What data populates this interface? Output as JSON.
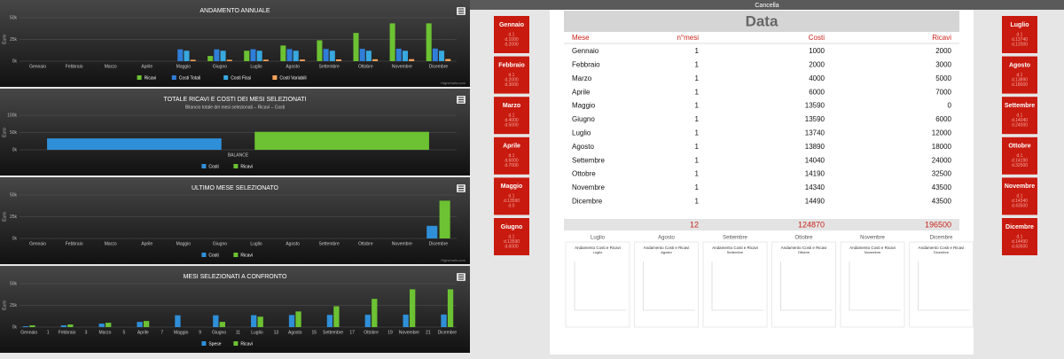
{
  "header": {
    "button": "Cancella"
  },
  "chart_data": [
    {
      "type": "bar",
      "title": "ANDAMENTO ANNUALE",
      "y_label": "Euro",
      "credit": "Highcharts.com",
      "categories": [
        "Gennaio",
        "Febbraio",
        "Marzo",
        "Aprile",
        "Maggio",
        "Giugno",
        "Luglio",
        "Agosto",
        "Settembre",
        "Ottobre",
        "Novembre",
        "Dicembre"
      ],
      "series": [
        {
          "name": "Ricavi",
          "color": "#6cc232",
          "values": [
            null,
            null,
            null,
            null,
            0,
            6000,
            12000,
            18000,
            24000,
            32500,
            43500,
            43500
          ]
        },
        {
          "name": "Costi Totali",
          "color": "#2f7ed8",
          "values": [
            null,
            null,
            null,
            null,
            13590,
            13590,
            13740,
            13890,
            14040,
            14190,
            14340,
            14490
          ]
        },
        {
          "name": "Costi Fissi",
          "color": "#38a8e0",
          "values": [
            null,
            null,
            null,
            null,
            12000,
            12000,
            12000,
            12000,
            12000,
            12000,
            12000,
            12000
          ]
        },
        {
          "name": "Costi Variabili",
          "color": "#f7a35c",
          "values": [
            null,
            null,
            null,
            null,
            1590,
            1590,
            1740,
            1890,
            2040,
            2190,
            2340,
            2490
          ]
        }
      ],
      "ylim": [
        0,
        50000
      ],
      "yticks": [
        {
          "value": 0,
          "label": "0k"
        },
        {
          "value": 25000,
          "label": "25k"
        },
        {
          "value": 50000,
          "label": "50k"
        }
      ],
      "grid": true
    },
    {
      "type": "bar",
      "title": "TOTALE RICAVI E COSTI DEI MESI SELEZIONATI",
      "subtitle": "Bilancio totale dei mesi selezionati – Ricavi – Costi",
      "y_label": "Euro",
      "categories": [
        "BALANCE"
      ],
      "series": [
        {
          "name": "Costi",
          "color": "#2f8fd8",
          "values": [
            33000
          ]
        },
        {
          "name": "Ricavi",
          "color": "#6cc232",
          "values": [
            52000
          ]
        }
      ],
      "ylim": [
        0,
        100000
      ],
      "yticks": [
        {
          "value": 0,
          "label": "0k"
        },
        {
          "value": 50000,
          "label": "50k"
        },
        {
          "value": 100000,
          "label": "100k"
        }
      ],
      "grid": true
    },
    {
      "type": "bar",
      "title": "ULTIMO MESE SELEZIONATO",
      "y_label": "Euro",
      "credit": "Highcharts.com",
      "categories": [
        "Gennaio",
        "Febbraio",
        "Marzo",
        "Aprile",
        "Maggio",
        "Giugno",
        "Luglio",
        "Agosto",
        "Settembre",
        "Ottobre",
        "Novembre",
        "Dicembre"
      ],
      "series": [
        {
          "name": "Costi",
          "color": "#2f8fd8",
          "values": [
            null,
            null,
            null,
            null,
            null,
            null,
            null,
            null,
            null,
            null,
            null,
            14490
          ]
        },
        {
          "name": "Ricavi",
          "color": "#6cc232",
          "values": [
            null,
            null,
            null,
            null,
            null,
            null,
            null,
            null,
            null,
            null,
            null,
            43500
          ]
        }
      ],
      "ylim": [
        0,
        50000
      ],
      "yticks": [
        {
          "value": 0,
          "label": "0k"
        },
        {
          "value": 25000,
          "label": "25k"
        },
        {
          "value": 50000,
          "label": "50k"
        }
      ],
      "grid": true
    },
    {
      "type": "bar",
      "title": "MESI SELEZIONATI A CONFRONTO",
      "y_label": "Euro",
      "categories": [
        "Gennaio",
        "1",
        "Febbraio",
        "3",
        "Marzo",
        "5",
        "Aprile",
        "7",
        "Maggio",
        "9",
        "Giugno",
        "11",
        "Luglio",
        "13",
        "Agosto",
        "15",
        "Settembre",
        "17",
        "Ottobre",
        "19",
        "Novembre",
        "21",
        "Dicembre"
      ],
      "series": [
        {
          "name": "Spese",
          "color": "#2f8fd8",
          "values": [
            1000,
            null,
            2000,
            null,
            4000,
            null,
            6000,
            null,
            13590,
            null,
            13590,
            null,
            13740,
            null,
            13890,
            null,
            14040,
            null,
            14190,
            null,
            14340,
            null,
            14490
          ]
        },
        {
          "name": "Ricavi",
          "color": "#6cc232",
          "values": [
            2000,
            null,
            3000,
            null,
            5000,
            null,
            7000,
            null,
            0,
            null,
            6000,
            null,
            12000,
            null,
            18000,
            null,
            24000,
            null,
            32500,
            null,
            43500,
            null,
            43500
          ]
        }
      ],
      "ylim": [
        0,
        50000
      ],
      "yticks": [
        {
          "value": 0,
          "label": "0k"
        },
        {
          "value": 25000,
          "label": "25k"
        },
        {
          "value": 50000,
          "label": "50k"
        }
      ],
      "grid": true
    }
  ],
  "table": {
    "title": "Data",
    "columns": [
      "Mese",
      "n°mesi",
      "Costi",
      "Ricavi"
    ],
    "rows": [
      [
        "Gennaio",
        1,
        1000,
        2000
      ],
      [
        "Febbraio",
        1,
        2000,
        3000
      ],
      [
        "Marzo",
        1,
        4000,
        5000
      ],
      [
        "Aprile",
        1,
        6000,
        7000
      ],
      [
        "Maggio",
        1,
        13590,
        0
      ],
      [
        "Giugno",
        1,
        13590,
        6000
      ],
      [
        "Luglio",
        1,
        13740,
        12000
      ],
      [
        "Agosto",
        1,
        13890,
        18000
      ],
      [
        "Settembre",
        1,
        14040,
        24000
      ],
      [
        "Ottobre",
        1,
        14190,
        32500
      ],
      [
        "Novembre",
        1,
        14340,
        43500
      ],
      [
        "Dicembre",
        1,
        14490,
        43500
      ]
    ],
    "totals": [
      12,
      124870,
      196500
    ]
  },
  "left_buttons": [
    {
      "label": "Gennaio",
      "lines": [
        "d.1",
        "d.1000",
        "d.2000"
      ]
    },
    {
      "label": "Febbraio",
      "lines": [
        "d.1",
        "d.2000",
        "d.3000"
      ]
    },
    {
      "label": "Marzo",
      "lines": [
        "d.1",
        "d.4000",
        "d.5000"
      ]
    },
    {
      "label": "Aprile",
      "lines": [
        "d.1",
        "d.6000",
        "d.7000"
      ]
    },
    {
      "label": "Maggio",
      "lines": [
        "d.1",
        "d.13590",
        "d.0"
      ]
    },
    {
      "label": "Giugno",
      "lines": [
        "d.1",
        "d.13590",
        "d.6000"
      ]
    }
  ],
  "right_buttons": [
    {
      "label": "Luglio",
      "lines": [
        "d.1",
        "d.13740",
        "d.12000"
      ]
    },
    {
      "label": "Agosto",
      "lines": [
        "d.1",
        "d.13890",
        "d.18000"
      ]
    },
    {
      "label": "Settembre",
      "lines": [
        "d.1",
        "d.14040",
        "d.24000"
      ]
    },
    {
      "label": "Ottobre",
      "lines": [
        "d.1",
        "d.14190",
        "d.32500"
      ]
    },
    {
      "label": "Novembre",
      "lines": [
        "d.1",
        "d.14340",
        "d.43500"
      ]
    },
    {
      "label": "Dicembre",
      "lines": [
        "d.1",
        "d.14490",
        "d.43500"
      ]
    }
  ],
  "mini_charts": [
    {
      "header": "Luglio",
      "title": "Andamento Costi e Ricavi",
      "month": "Luglio"
    },
    {
      "header": "Agosto",
      "title": "Andamento Costi e Ricavi",
      "month": "Agosto"
    },
    {
      "header": "Settembre",
      "title": "Andamento Costi e Ricavi",
      "month": "Settembre"
    },
    {
      "header": "Ottobre",
      "title": "Andamento Costi e Ricavi",
      "month": "Ottobre"
    },
    {
      "header": "Novembre",
      "title": "Andamento Costi e Ricavi",
      "month": "Novembre"
    },
    {
      "header": "Dicembre",
      "title": "Andamento Costi e Ricavi",
      "month": "Dicembre"
    }
  ]
}
